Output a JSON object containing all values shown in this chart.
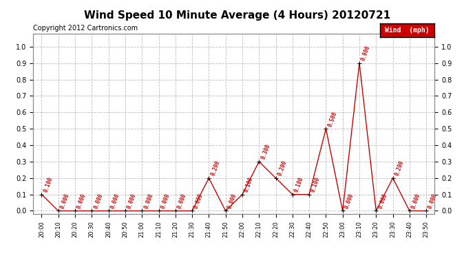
{
  "title": "Wind Speed 10 Minute Average (4 Hours) 20120721",
  "copyright": "Copyright 2012 Cartronics.com",
  "legend_label": "Wind  (mph)",
  "ylim": [
    0.0,
    1.0
  ],
  "yticks": [
    0.0,
    0.1,
    0.2,
    0.3,
    0.4,
    0.5,
    0.6,
    0.7,
    0.8,
    0.9,
    1.0
  ],
  "x_labels": [
    "20:00",
    "20:10",
    "20:20",
    "20:30",
    "20:40",
    "20:50",
    "21:00",
    "21:10",
    "21:20",
    "21:30",
    "21:40",
    "21:50",
    "22:00",
    "22:10",
    "22:20",
    "22:30",
    "22:40",
    "22:50",
    "23:00",
    "23:10",
    "23:20",
    "23:30",
    "23:40",
    "23:50"
  ],
  "values": [
    0.1,
    0.0,
    0.0,
    0.0,
    0.0,
    0.0,
    0.0,
    0.0,
    0.0,
    0.0,
    0.2,
    0.0,
    0.1,
    0.3,
    0.2,
    0.1,
    0.1,
    0.5,
    0.0,
    0.9,
    0.0,
    0.2,
    0.0,
    0.0
  ],
  "line_color": "#cc0000",
  "marker_color": "#000000",
  "label_color": "#cc0000",
  "bg_color": "#ffffff",
  "grid_color": "#bbbbbb",
  "title_fontsize": 11,
  "copyright_fontsize": 7,
  "label_fontsize": 5.5,
  "tick_fontsize": 7,
  "xtick_fontsize": 6,
  "legend_bg": "#cc0000",
  "legend_text_color": "#ffffff",
  "legend_fontsize": 7
}
